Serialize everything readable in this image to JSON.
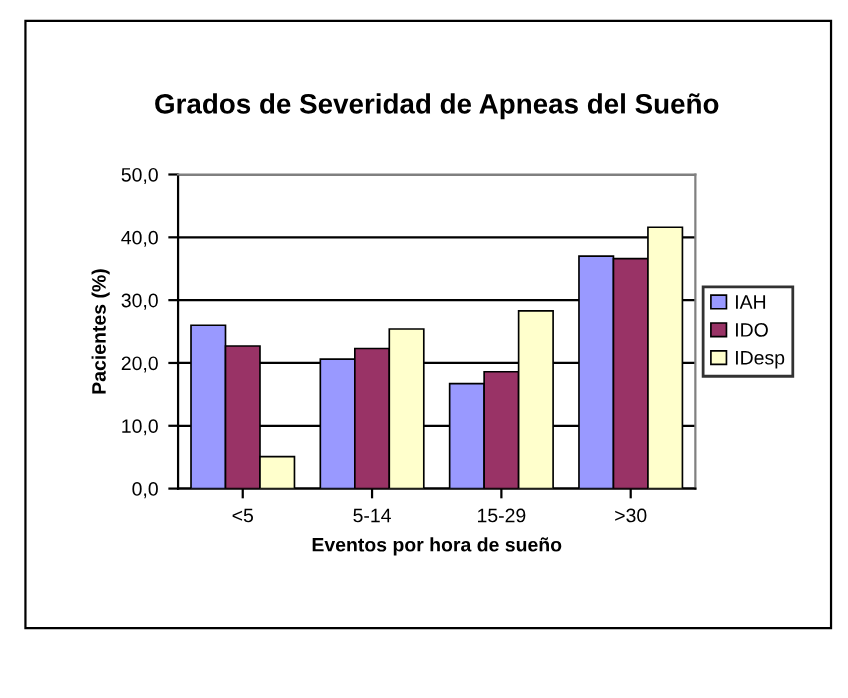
{
  "chart_data": {
    "type": "bar",
    "title": "Grados de Severidad de Apneas del Sueño",
    "xlabel": "Eventos por hora de sueño",
    "ylabel": "Pacientes (%)",
    "categories": [
      "<5",
      "5-14",
      "15-29",
      ">30"
    ],
    "series": [
      {
        "name": "IAH",
        "color": "#9999ff",
        "values": [
          26.0,
          20.6,
          16.7,
          37.0
        ]
      },
      {
        "name": "IDO",
        "color": "#993366",
        "values": [
          22.7,
          22.3,
          18.6,
          36.6
        ]
      },
      {
        "name": "IDesp",
        "color": "#ffffcc",
        "values": [
          5.1,
          25.4,
          28.3,
          41.6
        ]
      }
    ],
    "ylim": [
      0,
      50
    ],
    "yticks": [
      {
        "value": 0,
        "label": "0,0"
      },
      {
        "value": 10,
        "label": "10,0"
      },
      {
        "value": 20,
        "label": "20,0"
      },
      {
        "value": 30,
        "label": "30,0"
      },
      {
        "value": 40,
        "label": "40,0"
      },
      {
        "value": 50,
        "label": "50,0"
      }
    ],
    "grid": "y",
    "legend": "right"
  }
}
